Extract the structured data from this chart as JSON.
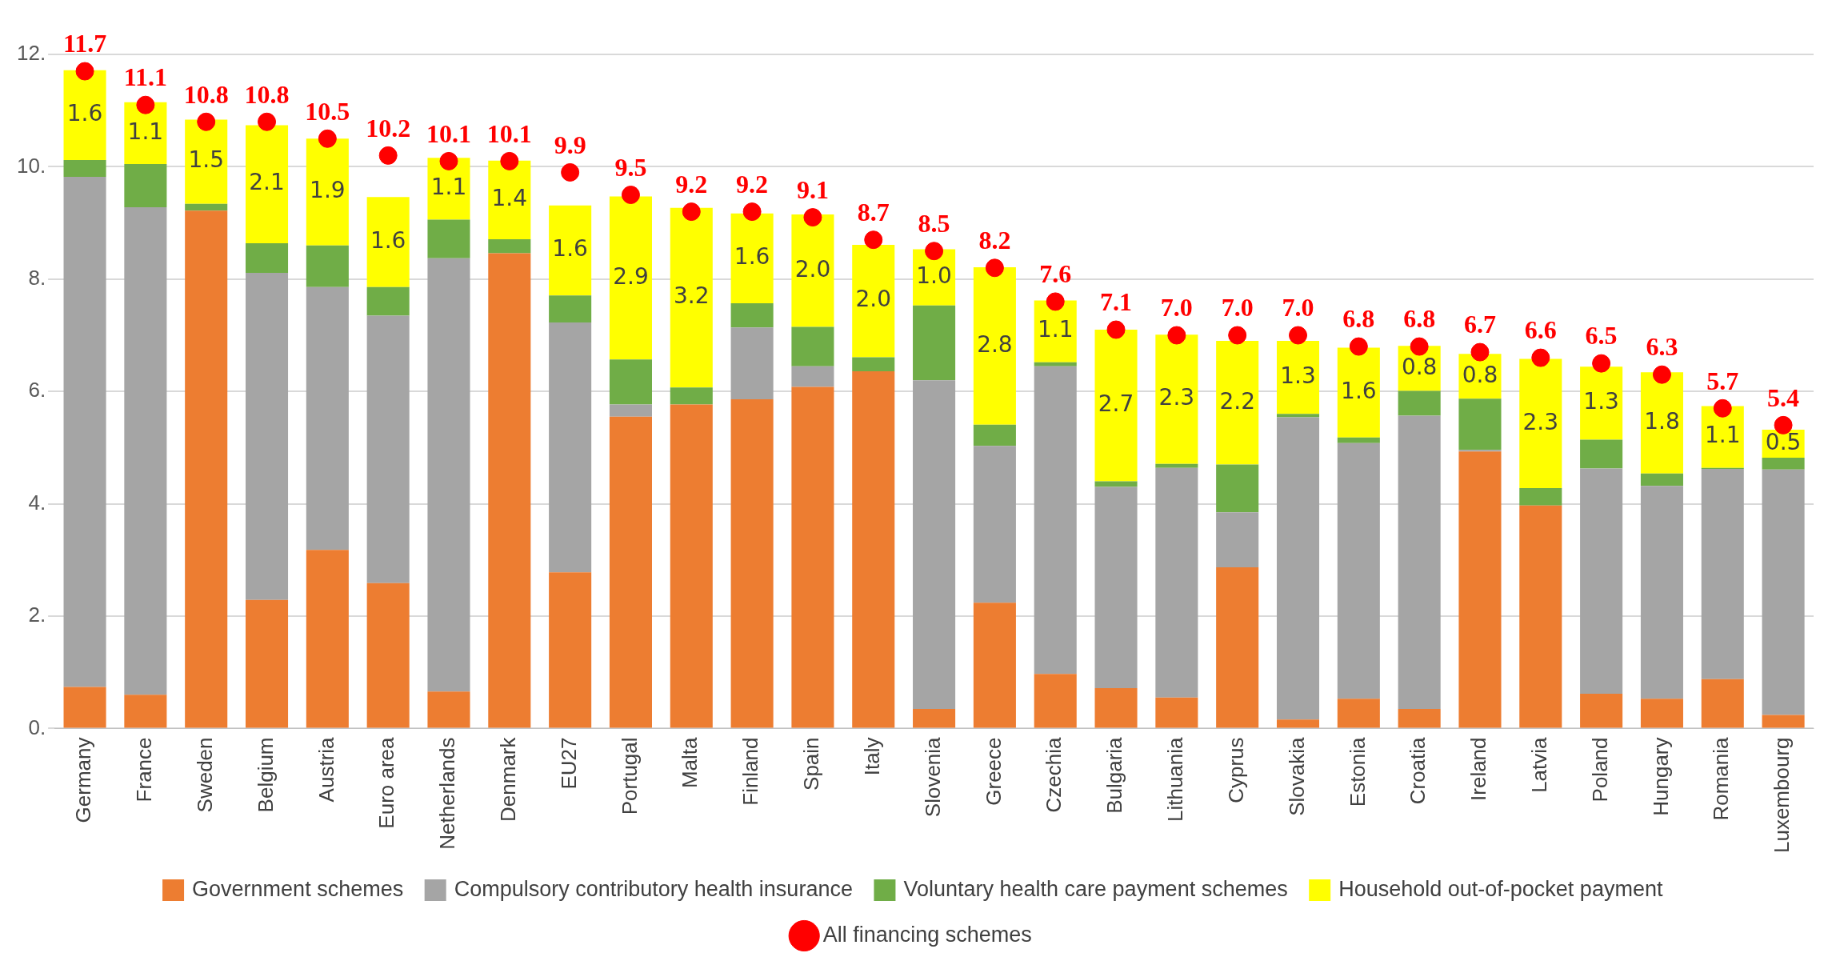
{
  "chart_data": {
    "type": "bar",
    "stacked": true,
    "categories": [
      "Germany",
      "France",
      "Sweden",
      "Belgium",
      "Austria",
      "Euro area",
      "Netherlands",
      "Denmark",
      "EU27",
      "Portugal",
      "Malta",
      "Finland",
      "Spain",
      "Italy",
      "Slovenia",
      "Greece",
      "Czechia",
      "Bulgaria",
      "Lithuania",
      "Cyprus",
      "Slovakia",
      "Estonia",
      "Croatia",
      "Ireland",
      "Latvia",
      "Poland",
      "Hungary",
      "Romania",
      "Luxembourg"
    ],
    "series": [
      {
        "name": "Government schemes",
        "color": "#ed7d31",
        "values": [
          0.74,
          0.6,
          9.22,
          2.29,
          3.18,
          2.59,
          0.66,
          8.46,
          2.78,
          5.55,
          5.77,
          5.86,
          6.08,
          6.36,
          0.35,
          2.24,
          0.97,
          0.72,
          0.55,
          2.87,
          0.16,
          0.53,
          0.35,
          4.93,
          3.97,
          0.62,
          0.53,
          0.88,
          0.24
        ]
      },
      {
        "name": "Compulsory contributory health insurance",
        "color": "#a5a5a5",
        "values": [
          9.08,
          8.68,
          0,
          5.82,
          4.68,
          4.76,
          7.71,
          0,
          4.45,
          0.22,
          0,
          1.28,
          0.37,
          0,
          5.85,
          2.79,
          5.48,
          3.58,
          4.09,
          0.98,
          5.38,
          4.55,
          5.22,
          0.03,
          0,
          4.01,
          3.79,
          3.74,
          4.37
        ]
      },
      {
        "name": "Voluntary health care payment schemes",
        "color": "#70ad47",
        "values": [
          0.3,
          0.77,
          0.12,
          0.53,
          0.74,
          0.51,
          0.69,
          0.25,
          0.48,
          0.8,
          0.3,
          0.43,
          0.7,
          0.25,
          1.33,
          0.38,
          0.07,
          0.1,
          0.07,
          0.85,
          0.06,
          0.1,
          0.44,
          0.91,
          0.31,
          0.51,
          0.22,
          0.02,
          0.21
        ]
      },
      {
        "name": "Household out-of-pocket payment",
        "color": "#ffff00",
        "values": [
          1.6,
          1.1,
          1.5,
          2.1,
          1.9,
          1.6,
          1.1,
          1.4,
          1.6,
          2.9,
          3.2,
          1.6,
          2.0,
          2.0,
          1.0,
          2.8,
          1.1,
          2.7,
          2.3,
          2.2,
          1.3,
          1.6,
          0.8,
          0.8,
          2.3,
          1.3,
          1.8,
          1.1,
          0.5
        ],
        "value_labels": [
          "1.6",
          "1.1",
          "1.5",
          "2.1",
          "1.9",
          "1.6",
          "1.1",
          "1.4",
          "1.6",
          "2.9",
          "3.2",
          "1.6",
          "2.0",
          "2.0",
          "1.0",
          "2.8",
          "1.1",
          "2.7",
          "2.3",
          "2.2",
          "1.3",
          "1.6",
          "0.8",
          "0.8",
          "2.3",
          "1.3",
          "1.8",
          "1.1",
          "0.5"
        ]
      },
      {
        "name": "All financing schemes",
        "type": "scatter",
        "marker": "circle",
        "color": "#ff0000",
        "values": [
          11.7,
          11.1,
          10.8,
          10.8,
          10.5,
          10.2,
          10.1,
          10.1,
          9.9,
          9.5,
          9.2,
          9.2,
          9.1,
          8.7,
          8.5,
          8.2,
          7.6,
          7.1,
          7.0,
          7.0,
          7.0,
          6.8,
          6.8,
          6.7,
          6.6,
          6.5,
          6.3,
          5.7,
          5.4
        ],
        "value_labels": [
          "11.7",
          "11.1",
          "10.8",
          "10.8",
          "10.5",
          "10.2",
          "10.1",
          "10.1",
          "9.9",
          "9.5",
          "9.2",
          "9.2",
          "9.1",
          "8.7",
          "8.5",
          "8.2",
          "7.6",
          "7.1",
          "7.0",
          "7.0",
          "7.0",
          "6.8",
          "6.8",
          "6.7",
          "6.6",
          "6.5",
          "6.3",
          "5.7",
          "5.4"
        ]
      }
    ],
    "ylim": [
      0,
      12
    ],
    "yticks": [
      {
        "value": 0,
        "label": "0."
      },
      {
        "value": 2,
        "label": "2."
      },
      {
        "value": 4,
        "label": "4."
      },
      {
        "value": 6,
        "label": "6."
      },
      {
        "value": 8,
        "label": "8."
      },
      {
        "value": 10,
        "label": "10."
      },
      {
        "value": 12,
        "label": "12."
      }
    ],
    "grid": "y",
    "legend": "bottom"
  }
}
